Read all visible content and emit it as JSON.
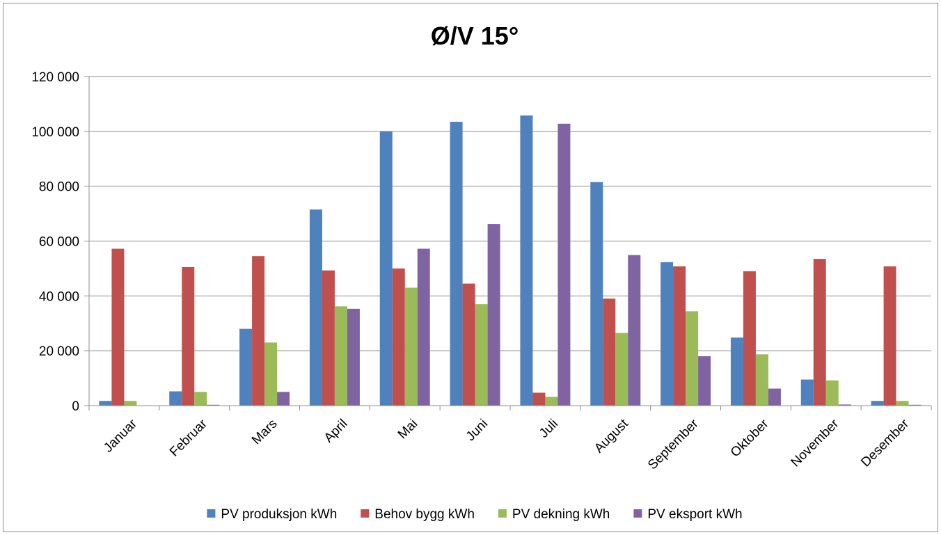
{
  "chart_data": {
    "type": "bar",
    "title": "Ø/V 15°",
    "xlabel": "",
    "ylabel": "",
    "ylim": [
      0,
      120000
    ],
    "yticks": [
      0,
      20000,
      40000,
      60000,
      80000,
      100000,
      120000
    ],
    "ytick_labels": [
      "0",
      "20 000",
      "40 000",
      "60 000",
      "80 000",
      "100 000",
      "120 000"
    ],
    "grid": true,
    "legend_position": "bottom",
    "categories": [
      "Januar",
      "Februar",
      "Mars",
      "April",
      "Mai",
      "Juni",
      "Juli",
      "August",
      "September",
      "Oktober",
      "November",
      "Desember"
    ],
    "series": [
      {
        "name": "PV produksjon kWh",
        "color": "#4F81BD",
        "values": [
          1700,
          5200,
          28000,
          71500,
          100000,
          103500,
          105800,
          81500,
          52300,
          24800,
          9500,
          1700
        ]
      },
      {
        "name": "Behov bygg kWh",
        "color": "#C0504D",
        "values": [
          57200,
          50500,
          54500,
          49300,
          50000,
          44500,
          4700,
          39000,
          50800,
          49000,
          53500,
          50800
        ]
      },
      {
        "name": "PV dekning kWh",
        "color": "#9BBB59",
        "values": [
          1700,
          5000,
          23000,
          36200,
          43000,
          37000,
          3200,
          26500,
          34400,
          18700,
          9200,
          1700
        ]
      },
      {
        "name": "PV eksport kWh",
        "color": "#8064A2",
        "values": [
          0,
          300,
          5000,
          35300,
          57200,
          66200,
          102800,
          54900,
          18000,
          6200,
          400,
          300
        ]
      }
    ]
  }
}
